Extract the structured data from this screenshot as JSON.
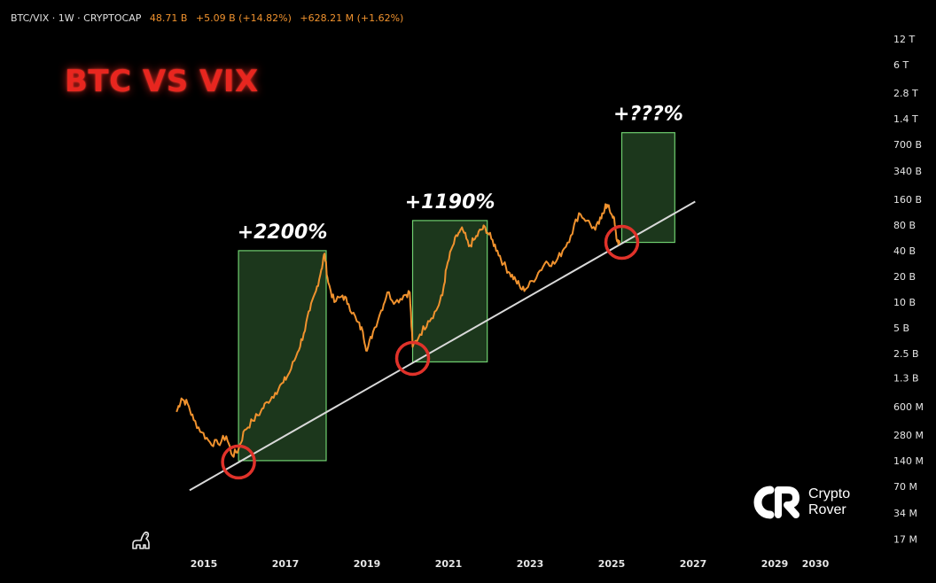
{
  "header": {
    "symbol": "BTC/VIX · 1W · CRYPTOCAP",
    "price": "48.71 B",
    "change": "+5.09 B (+14.82%)",
    "volume": "+628.21 M (+1.62%)"
  },
  "logo": {
    "line1": "Crypto",
    "line2": "Rover"
  },
  "colors": {
    "price_line": "#f0922e",
    "box_fill": "#1f3d1f",
    "box_stroke": "#6fcf6f",
    "circle": "#e0322a",
    "trendline": "#d9d9d9",
    "title": "#e8261f"
  },
  "icons": [
    "tradingview-dino-icon",
    "crypto-rover-logo-icon"
  ],
  "chart_data": {
    "type": "line",
    "title": "BTC VS VIX",
    "y_scale": "log",
    "y_ticks": [
      "12 T",
      "6 T",
      "2.8 T",
      "1.4 T",
      "700 B",
      "340 B",
      "160 B",
      "80 B",
      "40 B",
      "20 B",
      "10 B",
      "5 B",
      "2.5 B",
      "1.3 B",
      "600 M",
      "280 M",
      "140 M",
      "70 M",
      "34 M",
      "17 M"
    ],
    "x_ticks": [
      "2015",
      "2017",
      "2019",
      "2021",
      "2023",
      "2025",
      "2027",
      "2029",
      "2030"
    ],
    "series": [
      {
        "values": [
          [
            2014.33,
            520000000
          ],
          [
            2014.45,
            750000000
          ],
          [
            2014.6,
            650000000
          ],
          [
            2014.75,
            420000000
          ],
          [
            2014.95,
            300000000
          ],
          [
            2015.15,
            230000000
          ],
          [
            2015.35,
            220000000
          ],
          [
            2015.55,
            270000000
          ],
          [
            2015.7,
            160000000
          ],
          [
            2015.85,
            190000000
          ],
          [
            2016.0,
            320000000
          ],
          [
            2016.2,
            410000000
          ],
          [
            2016.4,
            530000000
          ],
          [
            2016.55,
            680000000
          ],
          [
            2016.75,
            870000000
          ],
          [
            2016.95,
            1150000000
          ],
          [
            2017.1,
            1500000000
          ],
          [
            2017.3,
            2600000000
          ],
          [
            2017.45,
            4300000000
          ],
          [
            2017.6,
            8000000000
          ],
          [
            2017.75,
            13500000000
          ],
          [
            2017.88,
            24000000000
          ],
          [
            2017.96,
            37000000000
          ],
          [
            2018.05,
            17000000000
          ],
          [
            2018.2,
            10000000000
          ],
          [
            2018.4,
            12000000000
          ],
          [
            2018.55,
            9500000000
          ],
          [
            2018.75,
            6000000000
          ],
          [
            2018.9,
            4500000000
          ],
          [
            2019.0,
            2700000000
          ],
          [
            2019.15,
            4500000000
          ],
          [
            2019.35,
            8000000000
          ],
          [
            2019.5,
            13000000000
          ],
          [
            2019.7,
            10000000000
          ],
          [
            2019.9,
            12000000000
          ],
          [
            2020.05,
            13000000000
          ],
          [
            2020.12,
            3000000000
          ],
          [
            2020.3,
            4200000000
          ],
          [
            2020.5,
            6000000000
          ],
          [
            2020.7,
            8000000000
          ],
          [
            2020.85,
            12000000000
          ],
          [
            2020.95,
            25000000000
          ],
          [
            2021.1,
            45000000000
          ],
          [
            2021.25,
            65000000000
          ],
          [
            2021.35,
            70000000000
          ],
          [
            2021.5,
            45000000000
          ],
          [
            2021.65,
            55000000000
          ],
          [
            2021.8,
            70000000000
          ],
          [
            2021.9,
            75000000000
          ],
          [
            2022.05,
            55000000000
          ],
          [
            2022.2,
            40000000000
          ],
          [
            2022.35,
            28000000000
          ],
          [
            2022.5,
            22000000000
          ],
          [
            2022.65,
            18000000000
          ],
          [
            2022.8,
            14000000000
          ],
          [
            2022.95,
            15000000000
          ],
          [
            2023.2,
            22000000000
          ],
          [
            2023.4,
            30000000000
          ],
          [
            2023.6,
            28000000000
          ],
          [
            2023.8,
            40000000000
          ],
          [
            2024.0,
            60000000000
          ],
          [
            2024.2,
            110000000000
          ],
          [
            2024.4,
            90000000000
          ],
          [
            2024.6,
            70000000000
          ],
          [
            2024.75,
            95000000000
          ],
          [
            2024.85,
            140000000000
          ],
          [
            2024.95,
            120000000000
          ],
          [
            2025.05,
            100000000000
          ],
          [
            2025.12,
            55000000000
          ],
          [
            2025.2,
            48710000000
          ]
        ]
      }
    ],
    "boxes": [
      {
        "x": [
          2015.85,
          2018.0
        ],
        "y": [
          140000000,
          40000000000
        ],
        "label": "+2200%"
      },
      {
        "x": [
          2020.12,
          2021.95
        ],
        "y": [
          2000000000,
          90000000000
        ],
        "label": "+1190%"
      },
      {
        "x": [
          2025.25,
          2026.55
        ],
        "y": [
          50000000000,
          960000000000
        ],
        "label": "+???%"
      }
    ],
    "circles": [
      [
        2015.85,
        135000000
      ],
      [
        2020.12,
        2200000000
      ],
      [
        2025.25,
        50000000000
      ]
    ],
    "trendline": [
      [
        2014.65,
        63000000
      ],
      [
        2027.05,
        150000000000
      ]
    ],
    "grid": false,
    "legend": "none"
  }
}
